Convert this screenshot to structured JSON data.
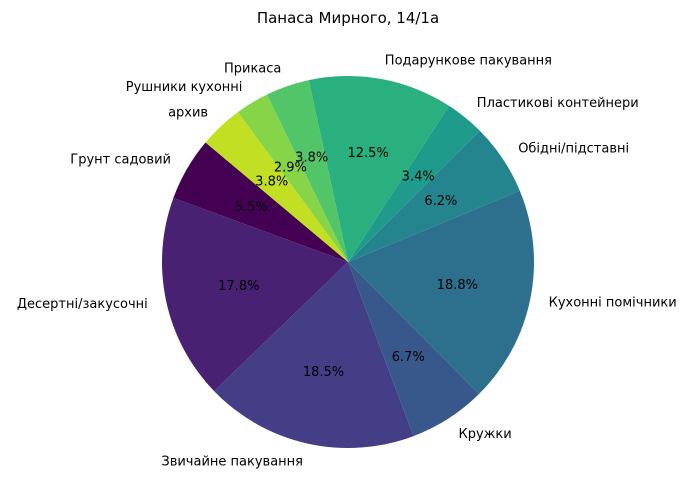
{
  "chart_data": {
    "type": "pie",
    "title": "Панаса Мирного, 14/1а",
    "slices": [
      {
        "label": "Грунт садовий",
        "value": 5.5,
        "pct_text": "5.5%",
        "color": "#440154"
      },
      {
        "label": "Десертні/закусочні",
        "value": 17.8,
        "pct_text": "17.8%",
        "color": "#482173"
      },
      {
        "label": "Звичайне пакування",
        "value": 18.5,
        "pct_text": "18.5%",
        "color": "#433e85"
      },
      {
        "label": "Кружки",
        "value": 6.7,
        "pct_text": "6.7%",
        "color": "#38588c"
      },
      {
        "label": "Кухонні помічники",
        "value": 18.8,
        "pct_text": "18.8%",
        "color": "#2d708e"
      },
      {
        "label": "Обідні/підставні",
        "value": 6.2,
        "pct_text": "6.2%",
        "color": "#25858e"
      },
      {
        "label": "Пластикові контейнери",
        "value": 3.4,
        "pct_text": "3.4%",
        "color": "#1e9b8a"
      },
      {
        "label": "Подарункове пакування",
        "value": 12.5,
        "pct_text": "12.5%",
        "color": "#2ab07f"
      },
      {
        "label": "Прикаса",
        "value": 3.8,
        "pct_text": "3.8%",
        "color": "#52c569"
      },
      {
        "label": "Рушники кухонні",
        "value": 2.9,
        "pct_text": "2.9%",
        "color": "#86d549"
      },
      {
        "label": "архив",
        "value": 3.8,
        "pct_text": "3.8%",
        "color": "#c2df23"
      }
    ],
    "extra_slice_colors_note": "",
    "start_angle_deg": 140,
    "direction": "counterclockwise",
    "legend": "none"
  }
}
